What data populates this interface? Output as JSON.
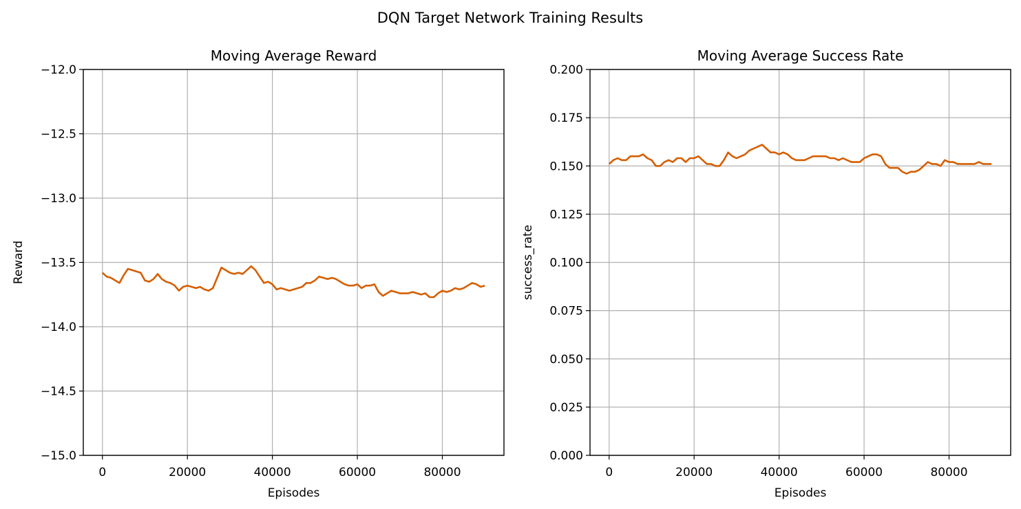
{
  "figure": {
    "suptitle": "DQN Target Network Training Results"
  },
  "colors": {
    "line": "#d55e00",
    "grid": "#b0b0b0",
    "axes": "#000000"
  },
  "chart_data": [
    {
      "type": "line",
      "title": "Moving Average Reward",
      "xlabel": "Episodes",
      "ylabel": "Reward",
      "xlim": [
        -4500,
        94500
      ],
      "ylim": [
        -15.0,
        -12.0
      ],
      "xticks": [
        0,
        20000,
        40000,
        60000,
        80000
      ],
      "xtick_labels": [
        "0",
        "20000",
        "40000",
        "60000",
        "80000"
      ],
      "yticks": [
        -15.0,
        -14.5,
        -14.0,
        -13.5,
        -13.0,
        -12.5,
        -12.0
      ],
      "ytick_labels": [
        "−15.0",
        "−14.5",
        "−14.0",
        "−13.5",
        "−13.0",
        "−12.5",
        "−12.0"
      ],
      "grid": true,
      "series": [
        {
          "x": [
            0,
            1000,
            2000,
            3000,
            4000,
            5000,
            6000,
            7000,
            8000,
            9000,
            10000,
            11000,
            12000,
            13000,
            14000,
            15000,
            16000,
            17000,
            18000,
            19000,
            20000,
            21000,
            22000,
            23000,
            24000,
            25000,
            26000,
            27000,
            28000,
            29000,
            30000,
            31000,
            32000,
            33000,
            34000,
            35000,
            36000,
            37000,
            38000,
            39000,
            40000,
            41000,
            42000,
            43000,
            44000,
            45000,
            46000,
            47000,
            48000,
            49000,
            50000,
            51000,
            52000,
            53000,
            54000,
            55000,
            56000,
            57000,
            58000,
            59000,
            60000,
            61000,
            62000,
            63000,
            64000,
            65000,
            66000,
            67000,
            68000,
            69000,
            70000,
            71000,
            72000,
            73000,
            74000,
            75000,
            76000,
            77000,
            78000,
            79000,
            80000,
            81000,
            82000,
            83000,
            84000,
            85000,
            86000,
            87000,
            88000,
            89000,
            90000
          ],
          "y": [
            -13.58,
            -13.61,
            -13.62,
            -13.64,
            -13.66,
            -13.6,
            -13.55,
            -13.56,
            -13.57,
            -13.58,
            -13.64,
            -13.65,
            -13.63,
            -13.59,
            -13.63,
            -13.65,
            -13.66,
            -13.68,
            -13.72,
            -13.69,
            -13.68,
            -13.69,
            -13.7,
            -13.69,
            -13.71,
            -13.72,
            -13.7,
            -13.62,
            -13.54,
            -13.56,
            -13.58,
            -13.59,
            -13.58,
            -13.59,
            -13.56,
            -13.53,
            -13.56,
            -13.61,
            -13.66,
            -13.65,
            -13.67,
            -13.71,
            -13.7,
            -13.71,
            -13.72,
            -13.71,
            -13.7,
            -13.69,
            -13.66,
            -13.66,
            -13.64,
            -13.61,
            -13.62,
            -13.63,
            -13.62,
            -13.63,
            -13.65,
            -13.67,
            -13.68,
            -13.68,
            -13.67,
            -13.7,
            -13.68,
            -13.68,
            -13.67,
            -13.73,
            -13.76,
            -13.74,
            -13.72,
            -13.73,
            -13.74,
            -13.74,
            -13.74,
            -13.73,
            -13.74,
            -13.75,
            -13.74,
            -13.77,
            -13.77,
            -13.74,
            -13.72,
            -13.73,
            -13.72,
            -13.7,
            -13.71,
            -13.7,
            -13.68,
            -13.66,
            -13.67,
            -13.69,
            -13.68
          ]
        }
      ]
    },
    {
      "type": "line",
      "title": "Moving Average Success Rate",
      "xlabel": "Episodes",
      "ylabel": "success_rate",
      "xlim": [
        -4500,
        94500
      ],
      "ylim": [
        0.0,
        0.2
      ],
      "xticks": [
        0,
        20000,
        40000,
        60000,
        80000
      ],
      "xtick_labels": [
        "0",
        "20000",
        "40000",
        "60000",
        "80000"
      ],
      "yticks": [
        0.0,
        0.025,
        0.05,
        0.075,
        0.1,
        0.125,
        0.15,
        0.175,
        0.2
      ],
      "ytick_labels": [
        "0.000",
        "0.025",
        "0.050",
        "0.075",
        "0.100",
        "0.125",
        "0.150",
        "0.175",
        "0.200"
      ],
      "grid": true,
      "series": [
        {
          "x": [
            0,
            1000,
            2000,
            3000,
            4000,
            5000,
            6000,
            7000,
            8000,
            9000,
            10000,
            11000,
            12000,
            13000,
            14000,
            15000,
            16000,
            17000,
            18000,
            19000,
            20000,
            21000,
            22000,
            23000,
            24000,
            25000,
            26000,
            27000,
            28000,
            29000,
            30000,
            31000,
            32000,
            33000,
            34000,
            35000,
            36000,
            37000,
            38000,
            39000,
            40000,
            41000,
            42000,
            43000,
            44000,
            45000,
            46000,
            47000,
            48000,
            49000,
            50000,
            51000,
            52000,
            53000,
            54000,
            55000,
            56000,
            57000,
            58000,
            59000,
            60000,
            61000,
            62000,
            63000,
            64000,
            65000,
            66000,
            67000,
            68000,
            69000,
            70000,
            71000,
            72000,
            73000,
            74000,
            75000,
            76000,
            77000,
            78000,
            79000,
            80000,
            81000,
            82000,
            83000,
            84000,
            85000,
            86000,
            87000,
            88000,
            89000,
            90000
          ],
          "y": [
            0.151,
            0.153,
            0.154,
            0.153,
            0.153,
            0.155,
            0.155,
            0.155,
            0.156,
            0.154,
            0.153,
            0.15,
            0.15,
            0.152,
            0.153,
            0.152,
            0.154,
            0.154,
            0.152,
            0.154,
            0.154,
            0.155,
            0.153,
            0.151,
            0.151,
            0.15,
            0.15,
            0.153,
            0.157,
            0.155,
            0.154,
            0.155,
            0.156,
            0.158,
            0.159,
            0.16,
            0.161,
            0.159,
            0.157,
            0.157,
            0.156,
            0.157,
            0.156,
            0.154,
            0.153,
            0.153,
            0.153,
            0.154,
            0.155,
            0.155,
            0.155,
            0.155,
            0.154,
            0.154,
            0.153,
            0.154,
            0.153,
            0.152,
            0.152,
            0.152,
            0.154,
            0.155,
            0.156,
            0.156,
            0.155,
            0.151,
            0.149,
            0.149,
            0.149,
            0.147,
            0.146,
            0.147,
            0.147,
            0.148,
            0.15,
            0.152,
            0.151,
            0.151,
            0.15,
            0.153,
            0.152,
            0.152,
            0.151,
            0.151,
            0.151,
            0.151,
            0.151,
            0.152,
            0.151,
            0.151,
            0.151
          ]
        }
      ]
    }
  ]
}
